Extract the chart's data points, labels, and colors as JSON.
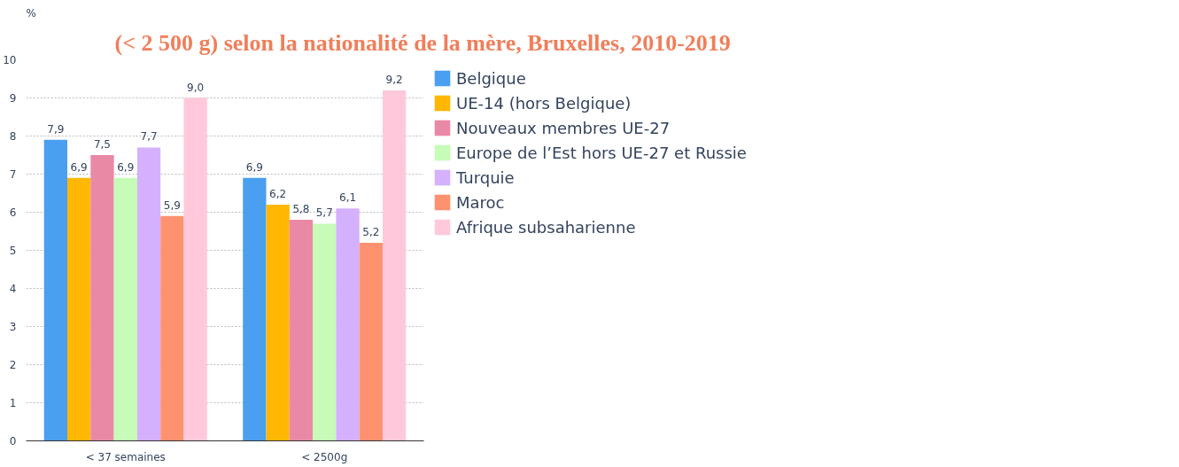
{
  "chart_data": {
    "type": "bar",
    "title": "(< 2 500 g) selon la nationalité de la mère, Bruxelles, 2010-2019",
    "ylabel": "%",
    "categories": [
      "< 37 semaines",
      "< 2500g"
    ],
    "series": [
      {
        "name": "Belgique",
        "color": "#4a9ff0",
        "values": [
          7.9,
          6.9
        ],
        "value_labels": [
          "7,9",
          "6,9"
        ]
      },
      {
        "name": "UE-14 (hors Belgique)",
        "color": "#ffb703",
        "values": [
          6.9,
          6.2
        ],
        "value_labels": [
          "6,9",
          "6,2"
        ]
      },
      {
        "name": "Nouveaux membres UE-27",
        "color": "#ea89a6",
        "values": [
          7.5,
          5.8
        ],
        "value_labels": [
          "7,5",
          "5,8"
        ]
      },
      {
        "name": "Europe de l’Est hors UE-27 et Russie",
        "color": "#c6fbb8",
        "values": [
          6.9,
          5.7
        ],
        "value_labels": [
          "6,9",
          "5,7"
        ]
      },
      {
        "name": "Turquie",
        "color": "#d4b0fd",
        "values": [
          7.7,
          6.1
        ],
        "value_labels": [
          "7,7",
          "6,1"
        ]
      },
      {
        "name": "Maroc",
        "color": "#fe9270",
        "values": [
          5.9,
          5.2
        ],
        "value_labels": [
          "5,9",
          "5,2"
        ]
      },
      {
        "name": "Afrique subsaharienne",
        "color": "#ffc9db",
        "values": [
          9.0,
          9.2
        ],
        "value_labels": [
          "9,0",
          "9,2"
        ]
      }
    ],
    "ylim": [
      0,
      10
    ],
    "yticks": [
      0,
      1,
      2,
      3,
      4,
      5,
      6,
      7,
      8,
      9,
      10
    ],
    "grid": "y",
    "legend": "right"
  }
}
